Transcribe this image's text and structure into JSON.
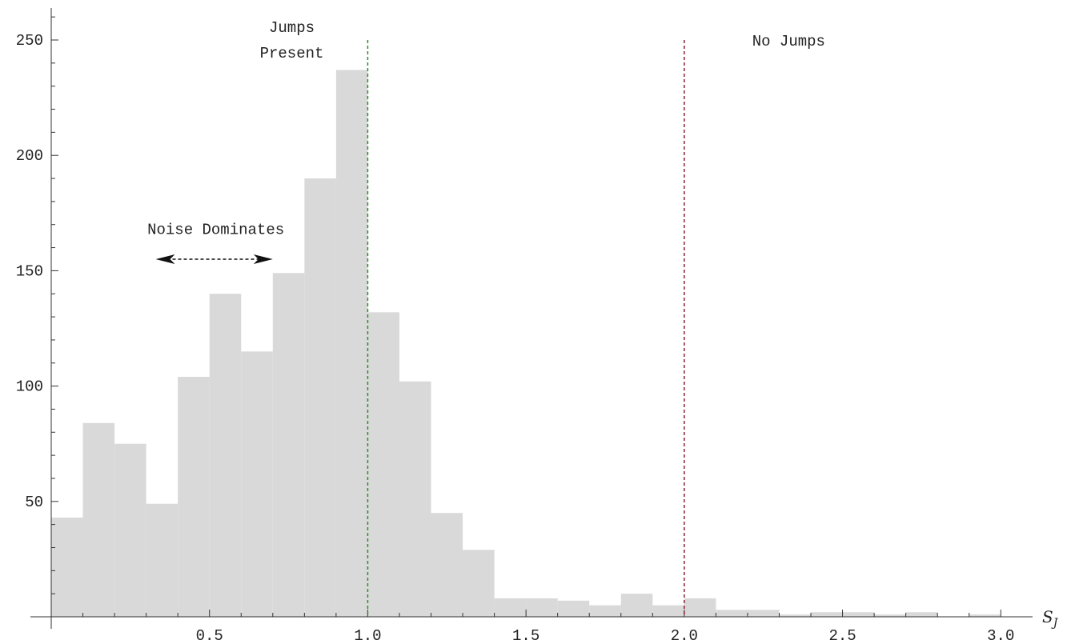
{
  "chart_data": {
    "type": "bar",
    "bin_width": 0.1,
    "bins": [
      {
        "x0": 0.0,
        "count": 43
      },
      {
        "x0": 0.1,
        "count": 84
      },
      {
        "x0": 0.2,
        "count": 75
      },
      {
        "x0": 0.3,
        "count": 49
      },
      {
        "x0": 0.4,
        "count": 104
      },
      {
        "x0": 0.5,
        "count": 140
      },
      {
        "x0": 0.6,
        "count": 115
      },
      {
        "x0": 0.7,
        "count": 149
      },
      {
        "x0": 0.8,
        "count": 190
      },
      {
        "x0": 0.9,
        "count": 237
      },
      {
        "x0": 1.0,
        "count": 132
      },
      {
        "x0": 1.1,
        "count": 102
      },
      {
        "x0": 1.2,
        "count": 45
      },
      {
        "x0": 1.3,
        "count": 29
      },
      {
        "x0": 1.4,
        "count": 8
      },
      {
        "x0": 1.5,
        "count": 8
      },
      {
        "x0": 1.6,
        "count": 7
      },
      {
        "x0": 1.7,
        "count": 5
      },
      {
        "x0": 1.8,
        "count": 10
      },
      {
        "x0": 1.9,
        "count": 5
      },
      {
        "x0": 2.0,
        "count": 8
      },
      {
        "x0": 2.1,
        "count": 3
      },
      {
        "x0": 2.2,
        "count": 3
      },
      {
        "x0": 2.3,
        "count": 1
      },
      {
        "x0": 2.4,
        "count": 2
      },
      {
        "x0": 2.5,
        "count": 2
      },
      {
        "x0": 2.6,
        "count": 1
      },
      {
        "x0": 2.7,
        "count": 2
      },
      {
        "x0": 2.8,
        "count": 0
      },
      {
        "x0": 2.9,
        "count": 1
      }
    ],
    "xlim": [
      0.0,
      3.06
    ],
    "ylim": [
      0,
      250
    ],
    "x_ticks": [
      "0.5",
      "1.0",
      "1.5",
      "2.0",
      "2.5",
      "3.0"
    ],
    "x_tick_values": [
      0.5,
      1.0,
      1.5,
      2.0,
      2.5,
      3.0
    ],
    "y_ticks": [
      "50",
      "100",
      "150",
      "200",
      "250"
    ],
    "y_tick_values": [
      50,
      100,
      150,
      200,
      250
    ],
    "xlabel": "S",
    "xlabel_sub": "J",
    "bar_color": "#d9d9d9",
    "reference_lines": [
      {
        "x": 1.0,
        "color": "#2e8b2e",
        "style": "dashed"
      },
      {
        "x": 2.0,
        "color": "#8b2230",
        "style": "dashed"
      }
    ],
    "annotations": {
      "jumps_present_line1": "Jumps",
      "jumps_present_line2": "Present",
      "no_jumps": "No Jumps",
      "noise_dominates": "Noise Dominates"
    },
    "noise_arrow": {
      "x_from": 0.33,
      "x_to": 0.7,
      "y": 155
    }
  }
}
